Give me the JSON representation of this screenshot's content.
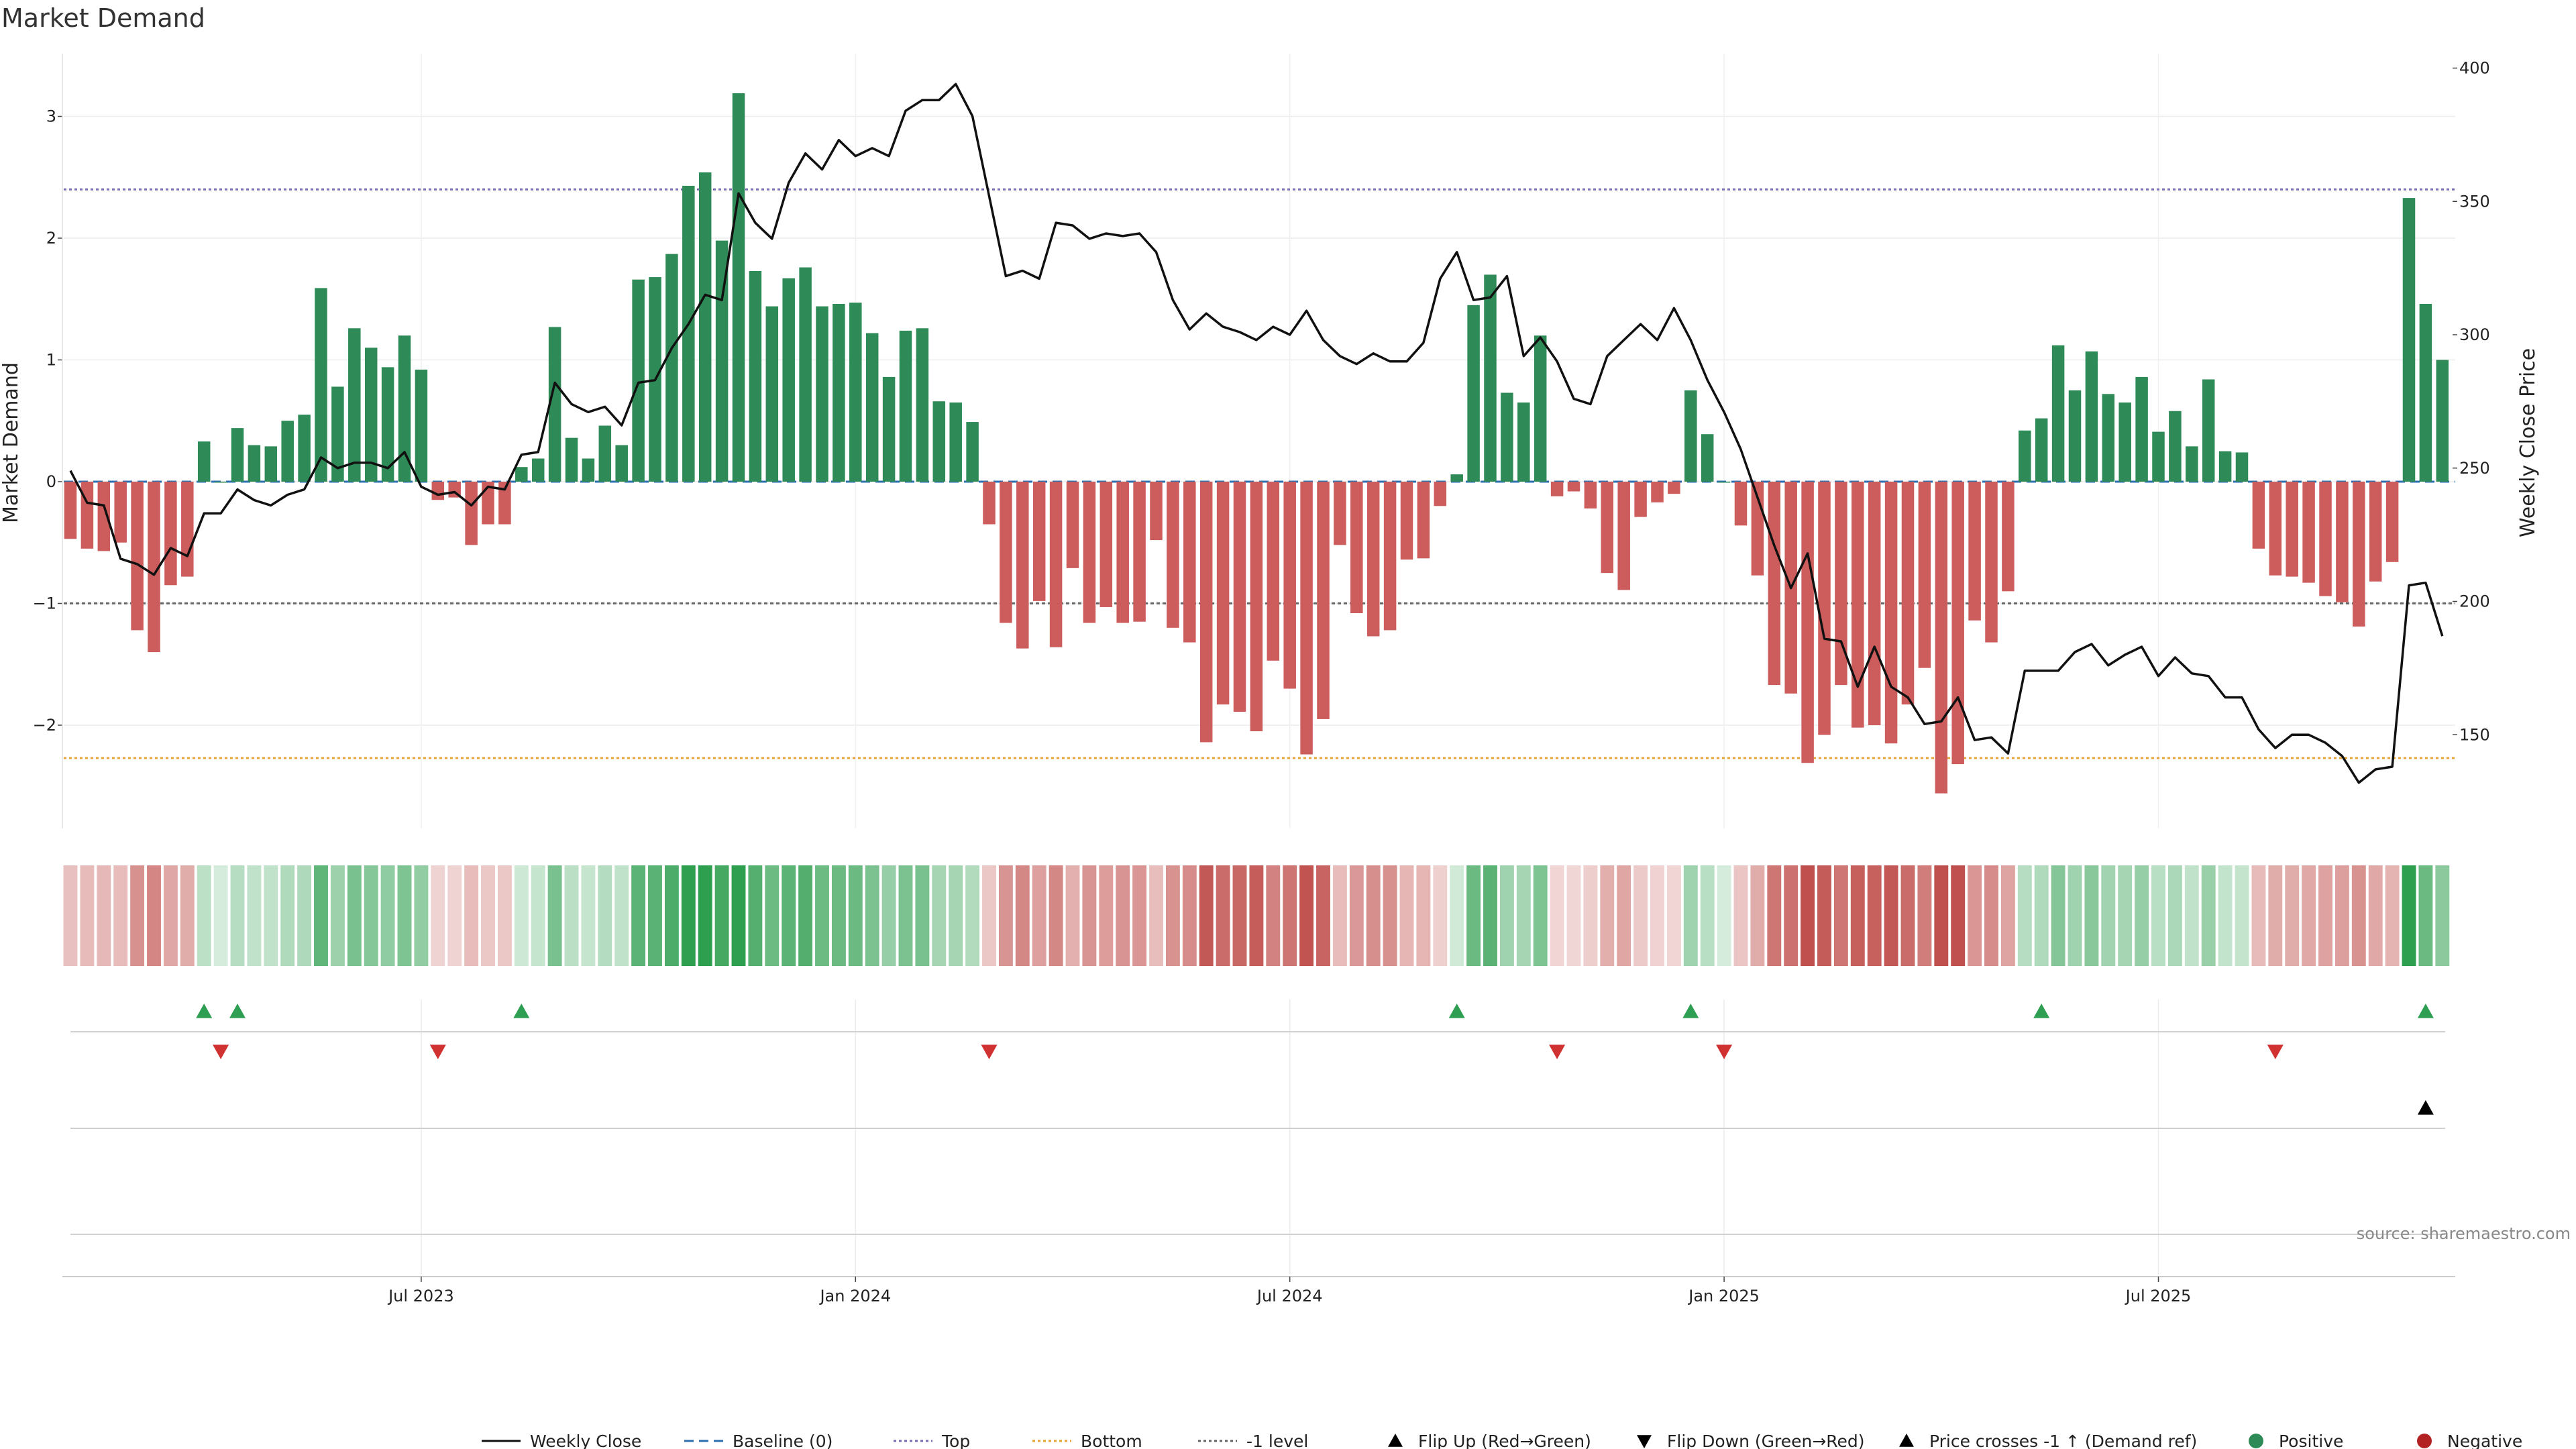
{
  "chart_data": {
    "type": "bar",
    "title": "Market Demand",
    "ylabel_left": "Market Demand",
    "ylabel_right": "Weekly Close Price",
    "ylim_left": [
      -2.9,
      3.5
    ],
    "ylim_right": [
      120,
      400
    ],
    "yticks_left": [
      3,
      2,
      1,
      0,
      -1,
      -2
    ],
    "yticks_left_labels": [
      "3",
      "2",
      "1",
      "0",
      "−1",
      "−2"
    ],
    "yticks_right": [
      400,
      350,
      300,
      250,
      200,
      150
    ],
    "yticks_right_labels": [
      "400",
      "350",
      "300",
      "250",
      "200",
      "150"
    ],
    "x_tick_labels": [
      "Jul 2023",
      "Jan 2024",
      "Jul 2024",
      "Jan 2025",
      "Jul 2025"
    ],
    "x_tick_weeks": [
      21,
      47,
      73,
      99,
      125
    ],
    "reference_lines": {
      "top": 2.4,
      "bottom": -2.27,
      "minus_one": -1,
      "baseline": 0
    },
    "demand": [
      -0.47,
      -0.55,
      -0.57,
      -0.5,
      -1.22,
      -1.4,
      -0.85,
      -0.78,
      0.33,
      0,
      0.44,
      0.3,
      0.29,
      0.5,
      0.55,
      1.59,
      0.78,
      1.26,
      1.1,
      0.94,
      1.2,
      0.92,
      -0.15,
      -0.13,
      -0.52,
      -0.35,
      -0.35,
      0.12,
      0.19,
      1.27,
      0.36,
      0.19,
      0.46,
      0.3,
      1.66,
      1.68,
      1.87,
      2.43,
      2.54,
      1.98,
      3.19,
      1.73,
      1.44,
      1.67,
      1.76,
      1.44,
      1.46,
      1.47,
      1.22,
      0.86,
      1.24,
      1.26,
      0.66,
      0.65,
      0.49,
      -0.35,
      -1.16,
      -1.37,
      -0.98,
      -1.36,
      -0.71,
      -1.16,
      -1.03,
      -1.16,
      -1.15,
      -0.48,
      -1.2,
      -1.32,
      -2.14,
      -1.83,
      -1.89,
      -2.05,
      -1.47,
      -1.7,
      -2.24,
      -1.95,
      -0.52,
      -1.08,
      -1.27,
      -1.22,
      -0.64,
      -0.63,
      -0.2,
      0.06,
      1.45,
      1.7,
      0.73,
      0.65,
      1.2,
      -0.12,
      -0.08,
      -0.22,
      -0.75,
      -0.89,
      -0.29,
      -0.17,
      -0.1,
      0.75,
      0.39,
      0,
      -0.36,
      -0.77,
      -1.67,
      -1.74,
      -2.31,
      -2.08,
      -1.67,
      -2.02,
      -2,
      -2.15,
      -1.83,
      -1.53,
      -2.56,
      -2.32,
      -1.14,
      -1.32,
      -0.9,
      0.42,
      0.52,
      1.12,
      0.75,
      1.07,
      0.72,
      0.65,
      0.86,
      0.41,
      0.58,
      0.29,
      0.84,
      0.25,
      0.24,
      -0.55,
      -0.77,
      -0.78,
      -0.83,
      -0.94,
      -0.99,
      -1.19,
      -0.82,
      -0.66,
      2.33,
      1.46,
      1
    ],
    "price": [
      249,
      237,
      236,
      216,
      214,
      210,
      220,
      217,
      233,
      233,
      242,
      238,
      236,
      240,
      242,
      254,
      250,
      252,
      252,
      250,
      256,
      243,
      240,
      241,
      236,
      243,
      242,
      255,
      256,
      282,
      274,
      271,
      273,
      266,
      282,
      283,
      295,
      304,
      315,
      313,
      353,
      342,
      336,
      357,
      368,
      362,
      373,
      367,
      370,
      367,
      384,
      388,
      388,
      394,
      382,
      352,
      322,
      324,
      321,
      342,
      341,
      336,
      338,
      337,
      338,
      331,
      313,
      302,
      308,
      303,
      301,
      298,
      303,
      300,
      309,
      298,
      292,
      289,
      293,
      290,
      290,
      297,
      321,
      331,
      313,
      314,
      322,
      292,
      299,
      290,
      276,
      274,
      292,
      298,
      304,
      298,
      310,
      298,
      283,
      271,
      257,
      239,
      221,
      205,
      218,
      186,
      185,
      168,
      183,
      168,
      164,
      154,
      155,
      164,
      148,
      149,
      143,
      174,
      174,
      174,
      181,
      184,
      176,
      180,
      183,
      172,
      179,
      173,
      172,
      164,
      164,
      152,
      145,
      150,
      150,
      147,
      142,
      132,
      137,
      138,
      206,
      207,
      187
    ],
    "series": [
      {
        "name": "Weekly Close",
        "color": "#111111"
      },
      {
        "name": "Baseline (0)",
        "color": "#2e6fb0"
      },
      {
        "name": "Top",
        "color": "#7a6bb5"
      },
      {
        "name": "Bottom",
        "color": "#e8a33a"
      },
      {
        "name": "-1 level",
        "color": "#666666"
      },
      {
        "name": "Flip Up (Red→Green)",
        "color": "#2e9e52"
      },
      {
        "name": "Flip Down (Green→Red)",
        "color": "#d03232"
      },
      {
        "name": "Price crosses -1 ↑ (Demand ref)",
        "color": "#000000"
      },
      {
        "name": "Positive",
        "color": "#2e8b57"
      },
      {
        "name": "Negative",
        "color": "#b22222"
      }
    ],
    "flip_up_weeks": [
      8,
      10,
      27,
      83,
      97,
      118,
      141
    ],
    "flip_down_weeks": [
      9,
      22,
      55,
      89,
      99,
      132
    ],
    "price_cross_weeks": [
      141
    ],
    "legend_position": "bottom-center",
    "grid": true
  },
  "colors": {
    "positive_bar": "#2e8b57",
    "negative_bar": "#cd5c5c",
    "heat_positive": "#2e9e4f",
    "heat_negative": "#c0504d"
  },
  "source": "source: sharemaestro.com"
}
